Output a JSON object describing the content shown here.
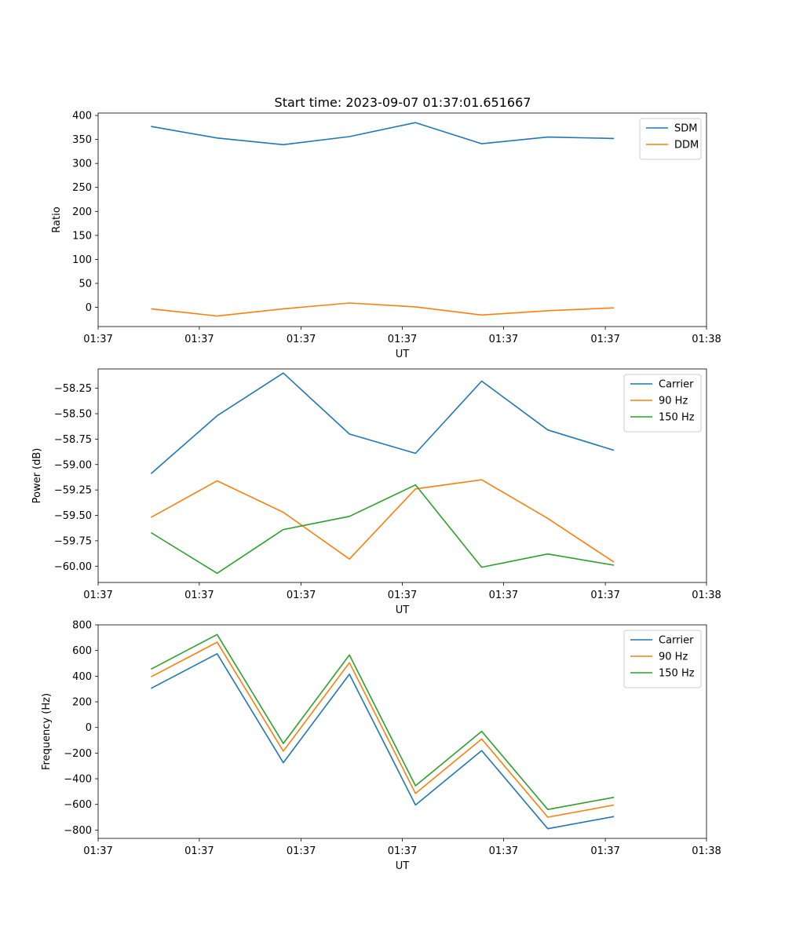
{
  "title": "Start time: 2023-09-07 01:37:01.651667",
  "colors": {
    "series1": "#1f77b4",
    "series2": "#ff7f0e",
    "series3": "#2ca02c"
  },
  "chart_data": [
    {
      "type": "line",
      "title": "Start time: 2023-09-07 01:37:01.651667",
      "xlabel": "UT",
      "ylabel": "Ratio",
      "x": [
        1,
        2,
        3,
        4,
        5,
        6,
        7,
        8
      ],
      "xlim": [
        0.2,
        9.4
      ],
      "x_ticks": [
        0.2,
        1.73,
        3.27,
        4.8,
        6.33,
        7.87,
        9.4
      ],
      "x_tick_labels": [
        "01:37",
        "01:37",
        "01:37",
        "01:37",
        "01:37",
        "01:37",
        "01:38"
      ],
      "ylim": [
        -40,
        405
      ],
      "y_ticks": [
        0,
        50,
        100,
        150,
        200,
        250,
        300,
        350,
        400
      ],
      "y_tick_labels": [
        "0",
        "50",
        "100",
        "150",
        "200",
        "250",
        "300",
        "350",
        "400"
      ],
      "series": [
        {
          "name": "SDM",
          "color": "#1f77b4",
          "values": [
            377,
            353,
            339,
            356,
            385,
            341,
            355,
            352
          ]
        },
        {
          "name": "DDM",
          "color": "#ff7f0e",
          "values": [
            -3,
            -18,
            -3,
            9,
            1,
            -16,
            -7,
            -1
          ]
        }
      ],
      "legend": "top-right"
    },
    {
      "type": "line",
      "xlabel": "UT",
      "ylabel": "Power (dB)",
      "x": [
        1,
        2,
        3,
        4,
        5,
        6,
        7,
        8
      ],
      "xlim": [
        0.2,
        9.4
      ],
      "x_ticks": [
        0.2,
        1.73,
        3.27,
        4.8,
        6.33,
        7.87,
        9.4
      ],
      "x_tick_labels": [
        "01:37",
        "01:37",
        "01:37",
        "01:37",
        "01:37",
        "01:37",
        "01:38"
      ],
      "ylim": [
        -60.16,
        -58.06
      ],
      "y_ticks": [
        -60.0,
        -59.75,
        -59.5,
        -59.25,
        -59.0,
        -58.75,
        -58.5,
        -58.25
      ],
      "y_tick_labels": [
        "−60.00",
        "−59.75",
        "−59.50",
        "−59.25",
        "−59.00",
        "−58.75",
        "−58.50",
        "−58.25"
      ],
      "series": [
        {
          "name": "Carrier",
          "color": "#1f77b4",
          "values": [
            -59.09,
            -58.52,
            -58.1,
            -58.7,
            -58.89,
            -58.18,
            -58.66,
            -58.86
          ]
        },
        {
          "name": "90 Hz",
          "color": "#ff7f0e",
          "values": [
            -59.52,
            -59.16,
            -59.47,
            -59.93,
            -59.24,
            -59.15,
            -59.53,
            -59.96
          ]
        },
        {
          "name": "150 Hz",
          "color": "#2ca02c",
          "values": [
            -59.67,
            -60.07,
            -59.64,
            -59.51,
            -59.2,
            -60.01,
            -59.88,
            -59.99
          ]
        }
      ],
      "legend": "top-right"
    },
    {
      "type": "line",
      "xlabel": "UT",
      "ylabel": "Frequency (Hz)",
      "x": [
        1,
        2,
        3,
        4,
        5,
        6,
        7,
        8
      ],
      "xlim": [
        0.2,
        9.4
      ],
      "x_ticks": [
        0.2,
        1.73,
        3.27,
        4.8,
        6.33,
        7.87,
        9.4
      ],
      "x_tick_labels": [
        "01:37",
        "01:37",
        "01:37",
        "01:37",
        "01:37",
        "01:37",
        "01:38"
      ],
      "ylim": [
        -865,
        800
      ],
      "y_ticks": [
        -800,
        -600,
        -400,
        -200,
        0,
        200,
        400,
        600,
        800
      ],
      "y_tick_labels": [
        "−800",
        "−600",
        "−400",
        "−200",
        "0",
        "200",
        "400",
        "600",
        "800"
      ],
      "series": [
        {
          "name": "Carrier",
          "color": "#1f77b4",
          "values": [
            305,
            575,
            -275,
            415,
            -605,
            -180,
            -790,
            -695
          ]
        },
        {
          "name": "90 Hz",
          "color": "#ff7f0e",
          "values": [
            395,
            665,
            -185,
            505,
            -515,
            -90,
            -700,
            -605
          ]
        },
        {
          "name": "150 Hz",
          "color": "#2ca02c",
          "values": [
            455,
            725,
            -125,
            565,
            -455,
            -30,
            -640,
            -545
          ]
        }
      ],
      "legend": "top-right"
    }
  ]
}
